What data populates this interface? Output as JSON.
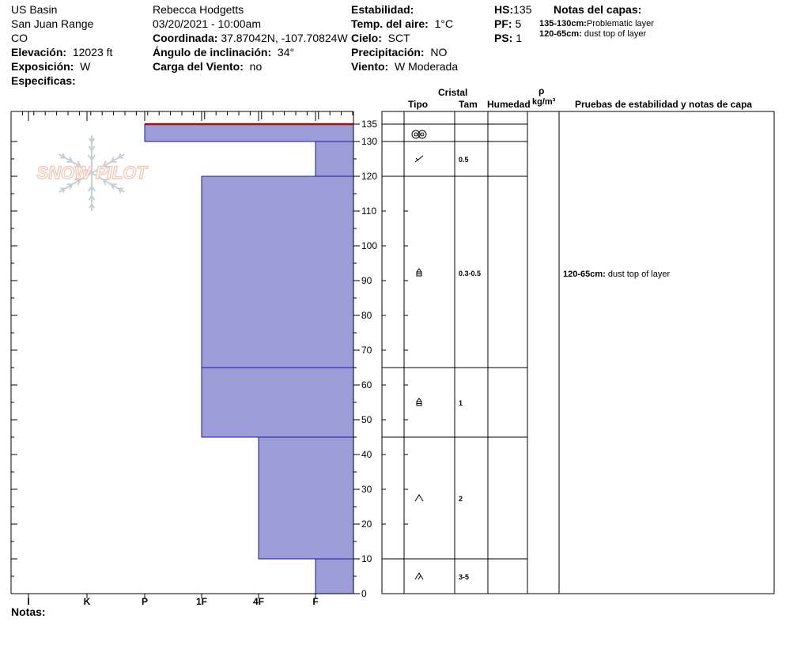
{
  "site": {
    "location": "US Basin",
    "range": "San Juan Range",
    "state": "CO",
    "elevation_label": "Elevación:",
    "elevation": "12023 ft",
    "aspect_label": "Exposición:",
    "aspect": "W",
    "specifics_label": "Especificas:"
  },
  "observer": {
    "name": "Rebecca Hodgetts",
    "datetime": "03/20/2021 - 10:00am",
    "coord_label": "Coordinada:",
    "coord": "37.87042N, -107.70824W",
    "slope_label": "Ángulo de inclinación:",
    "slope": "34°",
    "wind_load_label": "Carga del Viento:",
    "wind_load": "no"
  },
  "conditions": {
    "stability_label": "Estabilidad:",
    "stability": "",
    "air_temp_label": "Temp. del aire:",
    "air_temp": "1°C",
    "sky_label": "Cielo:",
    "sky": "SCT",
    "precip_label": "Precipitación:",
    "precip": "NO",
    "wind_label": "Viento:",
    "wind": "W Moderada"
  },
  "depths": {
    "hs_label": "HS:",
    "hs": "135",
    "pf_label": "PF:",
    "pf": "5",
    "ps_label": "PS:",
    "ps": "1"
  },
  "layer_notes": {
    "title": "Notas del capas:",
    "items": [
      {
        "range": "135-130cm:",
        "text": "Problematic layer"
      },
      {
        "range": "120-65cm:",
        "text": "dust top of layer"
      }
    ]
  },
  "logo_text": "SNOW PILOT",
  "notes_label": "Notas:",
  "table_headers": {
    "cristal": "Cristal",
    "tipo": "Tipo",
    "tam": "Tam",
    "humedad": "Humedad",
    "rho": "ρ",
    "density_unit": "kg/m³",
    "tests": "Pruebas de estabilidad y notas de capa"
  },
  "test_notes": [
    {
      "range": "120-65cm:",
      "text": "dust top of layer",
      "depth": 92
    }
  ],
  "chart_data": {
    "type": "bar",
    "xlabel": "",
    "ylabel": "",
    "hardness_scale": [
      "I",
      "K",
      "P",
      "1F",
      "4F",
      "F"
    ],
    "y_ticks": [
      0,
      10,
      20,
      30,
      40,
      50,
      60,
      70,
      80,
      90,
      100,
      110,
      120,
      130,
      135
    ],
    "ylim": [
      0,
      135
    ],
    "layers": [
      {
        "top": 135,
        "bottom": 130,
        "hardness": "P",
        "crystal": "rounded-grains",
        "size": "",
        "problematic": true
      },
      {
        "top": 130,
        "bottom": 120,
        "hardness": "F",
        "crystal": "decomposing-fragments",
        "size": "0.5",
        "problematic": false
      },
      {
        "top": 120,
        "bottom": 65,
        "hardness": "1F",
        "crystal": "faceted-crystals",
        "size": "0.3-0.5",
        "problematic": false
      },
      {
        "top": 65,
        "bottom": 45,
        "hardness": "1F",
        "crystal": "faceted-crystals",
        "size": "1",
        "problematic": false
      },
      {
        "top": 45,
        "bottom": 10,
        "hardness": "4F",
        "crystal": "depth-hoar",
        "size": "2",
        "problematic": false
      },
      {
        "top": 10,
        "bottom": 0,
        "hardness": "F",
        "crystal": "depth-hoar-chains",
        "size": "3-5",
        "problematic": false
      }
    ],
    "colors": {
      "layer_fill": "#9c9cd8",
      "layer_stroke": "#1a1aa0",
      "problem_line": "#a01010"
    }
  }
}
